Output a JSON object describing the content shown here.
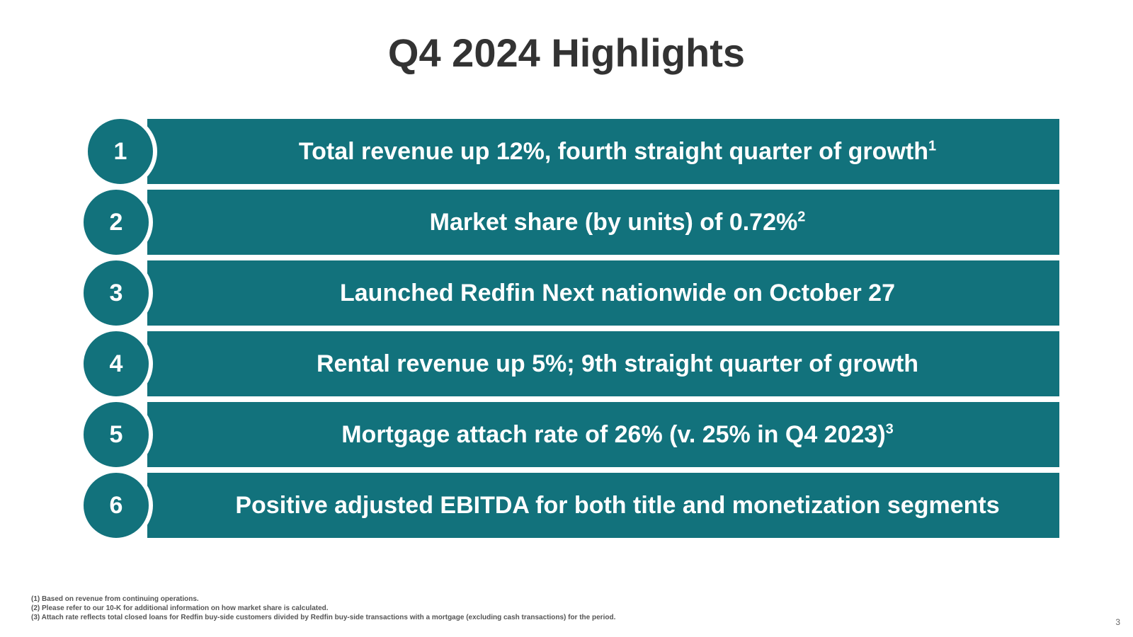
{
  "title": "Q4 2024 Highlights",
  "colors": {
    "accent": "#12727c",
    "title": "#333333",
    "background": "#ffffff"
  },
  "highlights": [
    {
      "number": "1",
      "text": "Total revenue up 12%, fourth straight quarter of growth",
      "footnote_ref": "1"
    },
    {
      "number": "2",
      "text": "Market share (by units) of 0.72%",
      "footnote_ref": "2"
    },
    {
      "number": "3",
      "text": "Launched Redfin Next nationwide on October 27",
      "footnote_ref": ""
    },
    {
      "number": "4",
      "text": "Rental revenue up 5%; 9th straight quarter of growth",
      "footnote_ref": ""
    },
    {
      "number": "5",
      "text": "Mortgage attach rate of 26% (v. 25% in Q4 2023)",
      "footnote_ref": "3"
    },
    {
      "number": "6",
      "text": "Positive adjusted EBITDA for both title and monetization segments",
      "footnote_ref": ""
    }
  ],
  "footnotes": [
    "(1)  Based on revenue from continuing operations.",
    "(2)  Please refer to our 10-K for additional information on how market share is calculated.",
    "(3) Attach rate reflects total closed loans for Redfin buy-side customers divided by Redfin buy-side transactions with a mortgage (excluding cash transactions) for the period."
  ],
  "page_number": "3"
}
